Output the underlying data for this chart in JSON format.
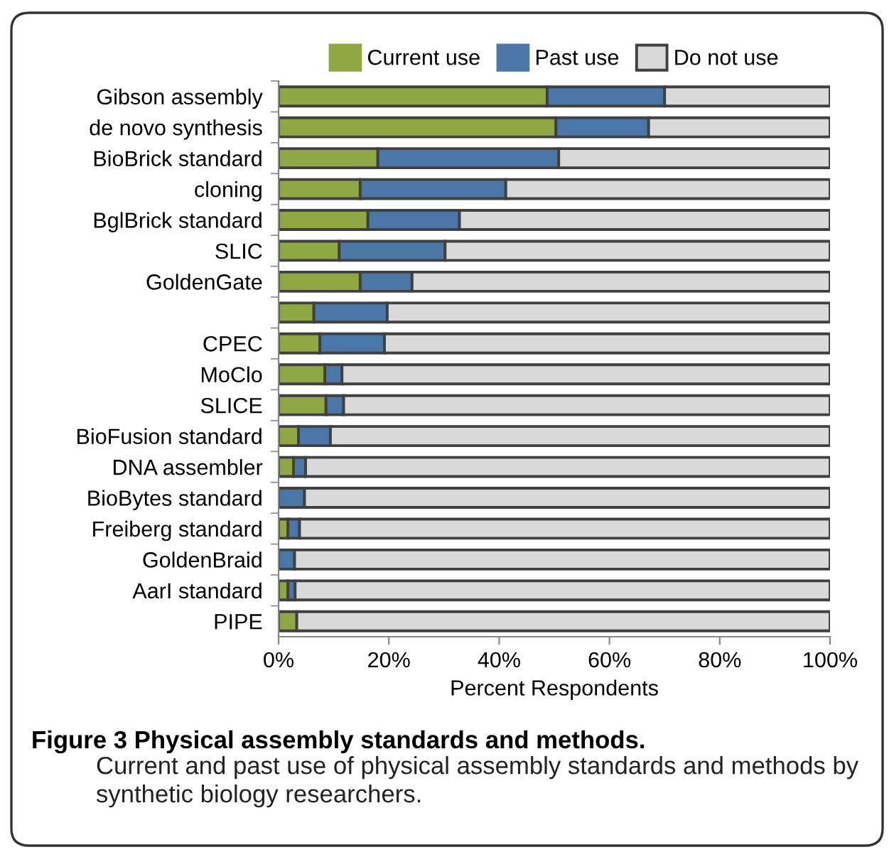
{
  "chart_data": {
    "type": "bar",
    "orientation": "horizontal",
    "stacked": true,
    "categories": [
      "Gibson assembly",
      "de novo synthesis",
      "BioBrick standard",
      "cloning",
      "BglBrick standard",
      "SLIC",
      "GoldenGate",
      null,
      "CPEC",
      "MoClo",
      "SLICE",
      "BioFusion standard",
      "DNA assembler",
      "BioBytes standard",
      "Freiberg standard",
      "GoldenBraid",
      "AarI standard",
      "PIPE"
    ],
    "series": [
      {
        "name": "Current use",
        "color": "#8fa843",
        "values": [
          48.7,
          50.3,
          18.0,
          14.8,
          16.2,
          11.0,
          14.8,
          6.4,
          7.5,
          8.4,
          8.6,
          3.6,
          2.7,
          0,
          1.7,
          0,
          1.7,
          3.3
        ]
      },
      {
        "name": "Past use",
        "color": "#4a77a8",
        "values": [
          21.3,
          16.8,
          32.8,
          26.4,
          16.6,
          19.2,
          9.4,
          13.3,
          11.7,
          3.1,
          3.2,
          5.8,
          2.2,
          4.7,
          2.1,
          2.9,
          1.3,
          0
        ]
      },
      {
        "name": "Do not use",
        "color": "#d9d9d9",
        "values": [
          30.0,
          32.9,
          49.2,
          58.8,
          67.2,
          69.8,
          75.8,
          80.3,
          80.8,
          88.5,
          88.2,
          90.6,
          95.1,
          95.3,
          96.2,
          97.1,
          97.0,
          96.7
        ]
      }
    ],
    "xlabel": "Percent Respondents",
    "xlim": [
      0,
      100
    ],
    "xticks": [
      {
        "value": 0,
        "label": "0%"
      },
      {
        "value": 20,
        "label": "20%"
      },
      {
        "value": 40,
        "label": "40%"
      },
      {
        "value": 60,
        "label": "60%"
      },
      {
        "value": 80,
        "label": "80%"
      },
      {
        "value": 100,
        "label": "100%"
      }
    ],
    "legend": "top",
    "grid": false,
    "annotations": [
      "Figure 3 Physical assembly standards and methods.",
      "Current and past use of physical assembly standards and methods by synthetic biology researchers."
    ]
  }
}
